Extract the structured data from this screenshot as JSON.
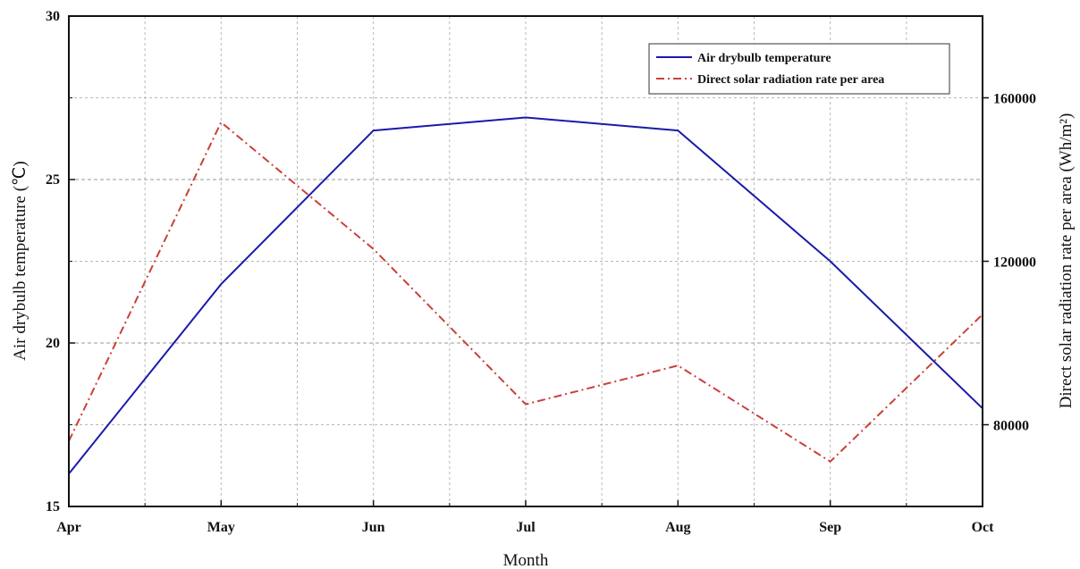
{
  "chart_data": {
    "type": "line",
    "categories": [
      "Apr",
      "May",
      "Jun",
      "Jul",
      "Aug",
      "Sep",
      "Oct"
    ],
    "xlabel": "Month",
    "ylabel_left": "Air drybulb temperature (℃)",
    "ylabel_right": "Direct solar radiation rate per area (Wh/m²)",
    "ylim_left": [
      15,
      30
    ],
    "yticks_left": [
      15,
      20,
      25,
      30
    ],
    "ylim_right": [
      60000,
      180000
    ],
    "yticks_right": [
      80000,
      120000,
      160000
    ],
    "grid": true,
    "legend_position": "top-right",
    "series": [
      {
        "name": "Air drybulb temperature",
        "axis": "left",
        "color": "#1a1aaa",
        "style": "solid",
        "values": [
          16.0,
          21.8,
          26.5,
          26.9,
          26.5,
          22.5,
          18.0
        ]
      },
      {
        "name": "Direct solar radiation rate per area",
        "axis": "right",
        "color": "#c9403a",
        "style": "dash-dot",
        "values": [
          76000,
          154000,
          123000,
          85000,
          94500,
          71000,
          107000
        ]
      }
    ]
  }
}
